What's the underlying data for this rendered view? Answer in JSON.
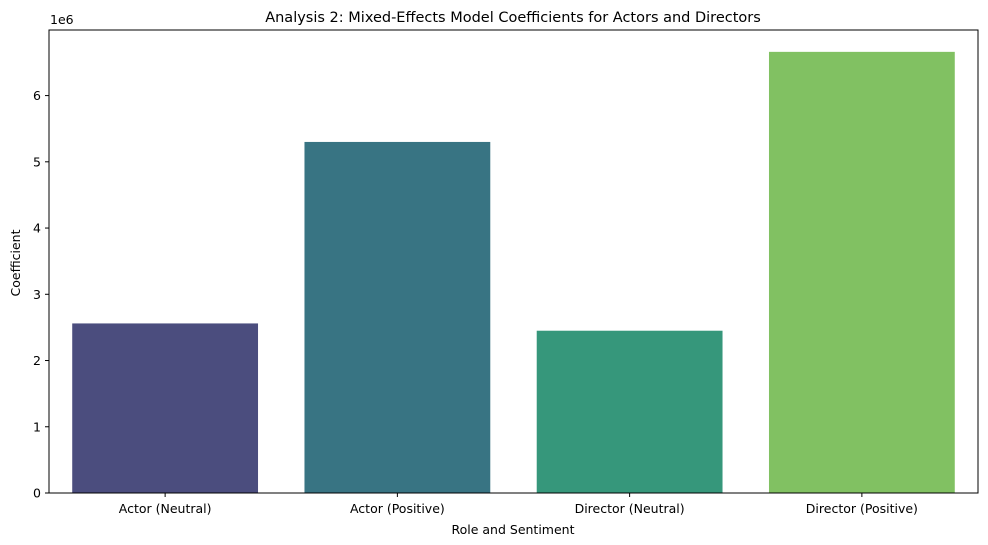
{
  "chart_data": {
    "type": "bar",
    "title": "Analysis 2: Mixed-Effects Model Coefficients for Actors and Directors",
    "xlabel": "Role and Sentiment",
    "ylabel": "Coefficient",
    "y_scale_label": "1e6",
    "categories": [
      "Actor (Neutral)",
      "Actor (Positive)",
      "Director (Neutral)",
      "Director (Positive)"
    ],
    "values": [
      2560000,
      5300000,
      2450000,
      6660000
    ],
    "colors": [
      "#4b4d7e",
      "#387483",
      "#36977b",
      "#81c162"
    ],
    "ylim": [
      0,
      6990000
    ],
    "yticks": [
      0,
      1000000,
      2000000,
      3000000,
      4000000,
      5000000,
      6000000
    ],
    "ytick_labels": [
      "0",
      "1",
      "2",
      "3",
      "4",
      "5",
      "6"
    ],
    "grid": false,
    "legend": "none"
  }
}
